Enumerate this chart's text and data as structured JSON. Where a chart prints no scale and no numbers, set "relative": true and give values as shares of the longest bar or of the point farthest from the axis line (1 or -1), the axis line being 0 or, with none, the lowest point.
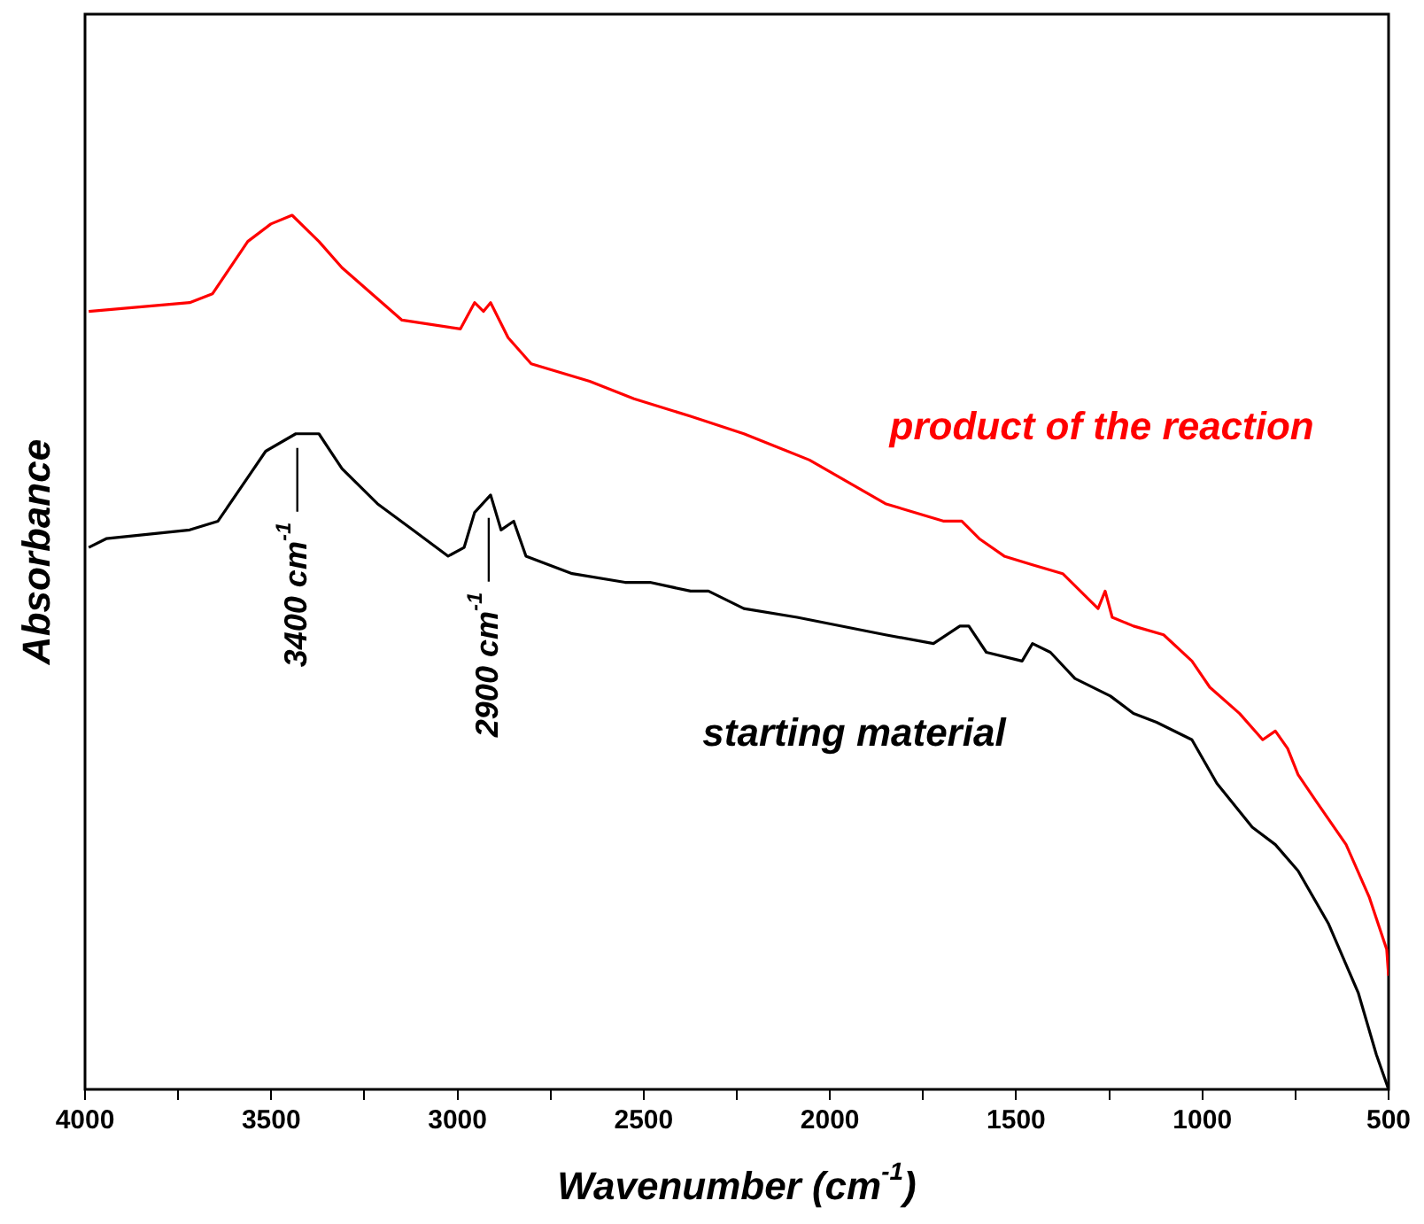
{
  "chart_data": {
    "type": "line",
    "relative": true,
    "xlabel": "Wavenumber (cm$^{-1}$)",
    "ylabel": "Absorbance",
    "xlim": [
      4000,
      500
    ],
    "xticks": [
      4000,
      {
        "value": 3750,
        "label": null
      },
      3500,
      {
        "value": 3250,
        "label": null
      },
      3000,
      {
        "value": 2750,
        "label": null
      },
      2500,
      {
        "value": 2250,
        "label": null
      },
      2000,
      {
        "value": 1750,
        "label": null
      },
      1500,
      {
        "value": 1250,
        "label": null
      },
      1000,
      {
        "value": 750,
        "label": null
      },
      500
    ],
    "marker": "none",
    "legend": false,
    "annotations": [
      {
        "text": "3400 cm$^{-1}$",
        "x": 3430,
        "y": 0.75
      },
      {
        "text": "2900 cm$^{-1}$",
        "x": 2916,
        "y": 0.67
      }
    ],
    "series": [
      {
        "name": "product of the reaction",
        "color": "#ff0000",
        "x": [
          3990,
          3719,
          3658,
          3563,
          3501,
          3444,
          3372,
          3310,
          3149,
          2992,
          2954,
          2930,
          2911,
          2864,
          2802,
          2645,
          2526,
          2374,
          2231,
          2055,
          1851,
          1694,
          1646,
          1599,
          1532,
          1456,
          1375,
          1280,
          1261,
          1242,
          1185,
          1104,
          1028,
          980,
          900,
          838,
          804,
          771,
          743,
          695,
          614,
          552,
          505,
          500
        ],
        "values": [
          0.89,
          0.9,
          0.91,
          0.97,
          0.99,
          1.0,
          0.97,
          0.94,
          0.88,
          0.87,
          0.9,
          0.89,
          0.9,
          0.86,
          0.83,
          0.81,
          0.79,
          0.77,
          0.75,
          0.72,
          0.67,
          0.65,
          0.65,
          0.63,
          0.61,
          0.6,
          0.59,
          0.55,
          0.57,
          0.54,
          0.53,
          0.52,
          0.49,
          0.46,
          0.43,
          0.4,
          0.41,
          0.39,
          0.36,
          0.33,
          0.28,
          0.22,
          0.16,
          0.13
        ]
      },
      {
        "name": "starting material",
        "color": "#000000",
        "x": [
          3990,
          3943,
          3719,
          3643,
          3563,
          3515,
          3434,
          3372,
          3310,
          3215,
          3120,
          3025,
          2982,
          2954,
          2911,
          2883,
          2849,
          2816,
          2692,
          2550,
          2516,
          2483,
          2374,
          2359,
          2326,
          2231,
          2088,
          1851,
          1722,
          1651,
          1627,
          1580,
          1484,
          1456,
          1408,
          1342,
          1247,
          1185,
          1123,
          1028,
          961,
          866,
          804,
          743,
          662,
          581,
          533,
          500
        ],
        "values": [
          0.62,
          0.63,
          0.64,
          0.65,
          0.7,
          0.73,
          0.75,
          0.75,
          0.71,
          0.67,
          0.64,
          0.61,
          0.62,
          0.66,
          0.68,
          0.64,
          0.65,
          0.61,
          0.59,
          0.58,
          0.58,
          0.58,
          0.57,
          0.57,
          0.57,
          0.55,
          0.54,
          0.52,
          0.51,
          0.53,
          0.53,
          0.5,
          0.49,
          0.51,
          0.5,
          0.47,
          0.45,
          0.43,
          0.42,
          0.4,
          0.35,
          0.3,
          0.28,
          0.25,
          0.19,
          0.11,
          0.04,
          0.0
        ]
      }
    ]
  }
}
